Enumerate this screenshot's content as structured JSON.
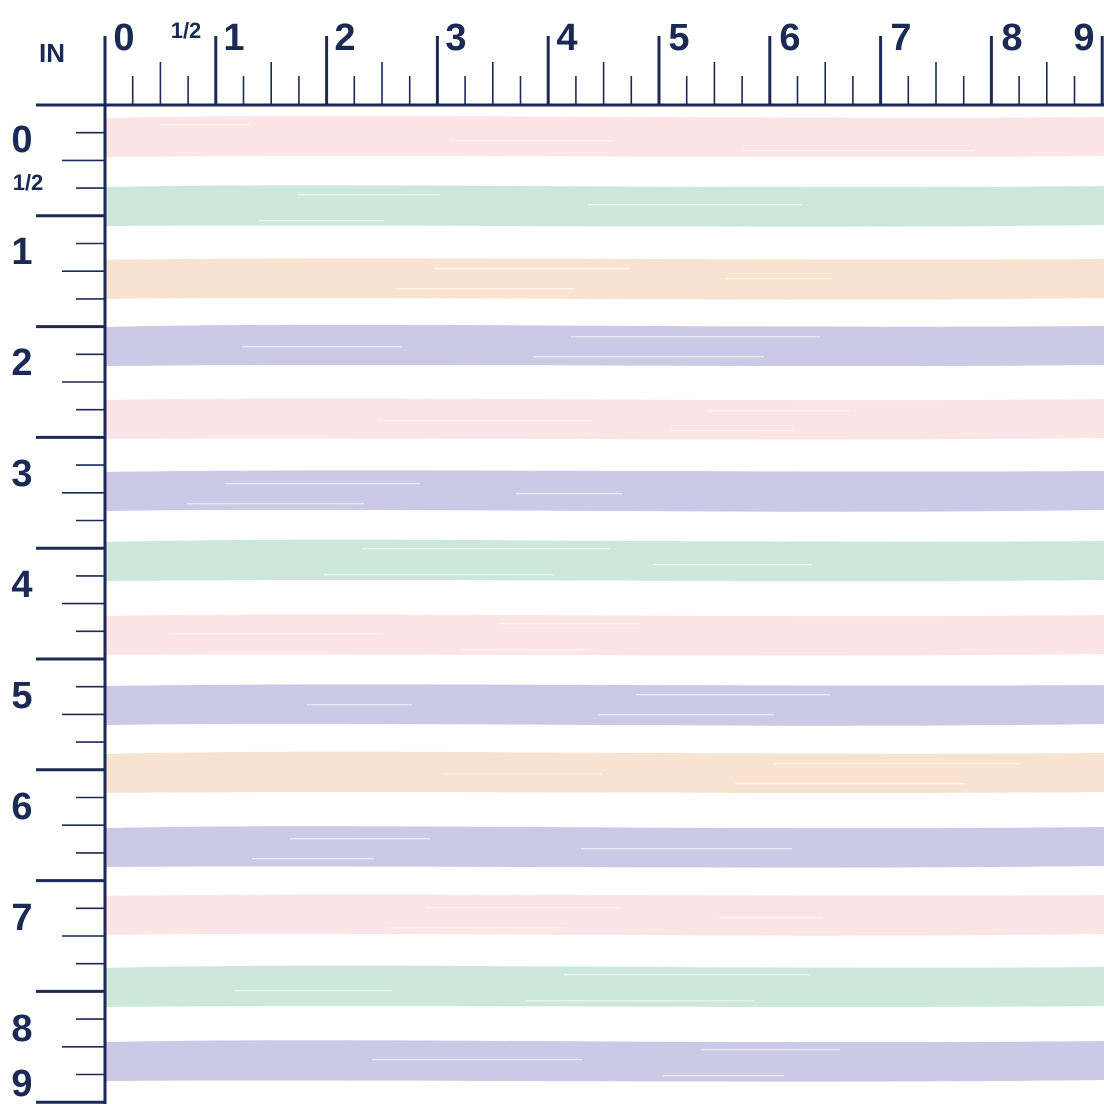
{
  "ruler": {
    "unit_label": "IN",
    "top_labels": [
      "0",
      "1/2",
      "1",
      "2",
      "3",
      "4",
      "5",
      "6",
      "7",
      "8",
      "9"
    ],
    "left_labels": [
      "0",
      "1/2",
      "1",
      "2",
      "3",
      "4",
      "5",
      "6",
      "7",
      "8",
      "9"
    ],
    "color": "#1b2a55"
  },
  "stripes": [
    {
      "color_name": "pink",
      "color": "#fde4e7"
    },
    {
      "color_name": "mint",
      "color": "#cce8dc"
    },
    {
      "color_name": "peach",
      "color": "#f8e3d0"
    },
    {
      "color_name": "lavender",
      "color": "#ccc9e6"
    },
    {
      "color_name": "pink",
      "color": "#fde4e7"
    },
    {
      "color_name": "lavender",
      "color": "#ccc9e6"
    },
    {
      "color_name": "mint",
      "color": "#cce8dc"
    },
    {
      "color_name": "pink",
      "color": "#fde4e7"
    },
    {
      "color_name": "lavender",
      "color": "#ccc9e6"
    },
    {
      "color_name": "peach",
      "color": "#f8e3d0"
    },
    {
      "color_name": "lavender",
      "color": "#ccc9e6"
    },
    {
      "color_name": "pink",
      "color": "#fde4e7"
    },
    {
      "color_name": "mint",
      "color": "#cce8dc"
    },
    {
      "color_name": "lavender",
      "color": "#ccc9e6"
    }
  ]
}
